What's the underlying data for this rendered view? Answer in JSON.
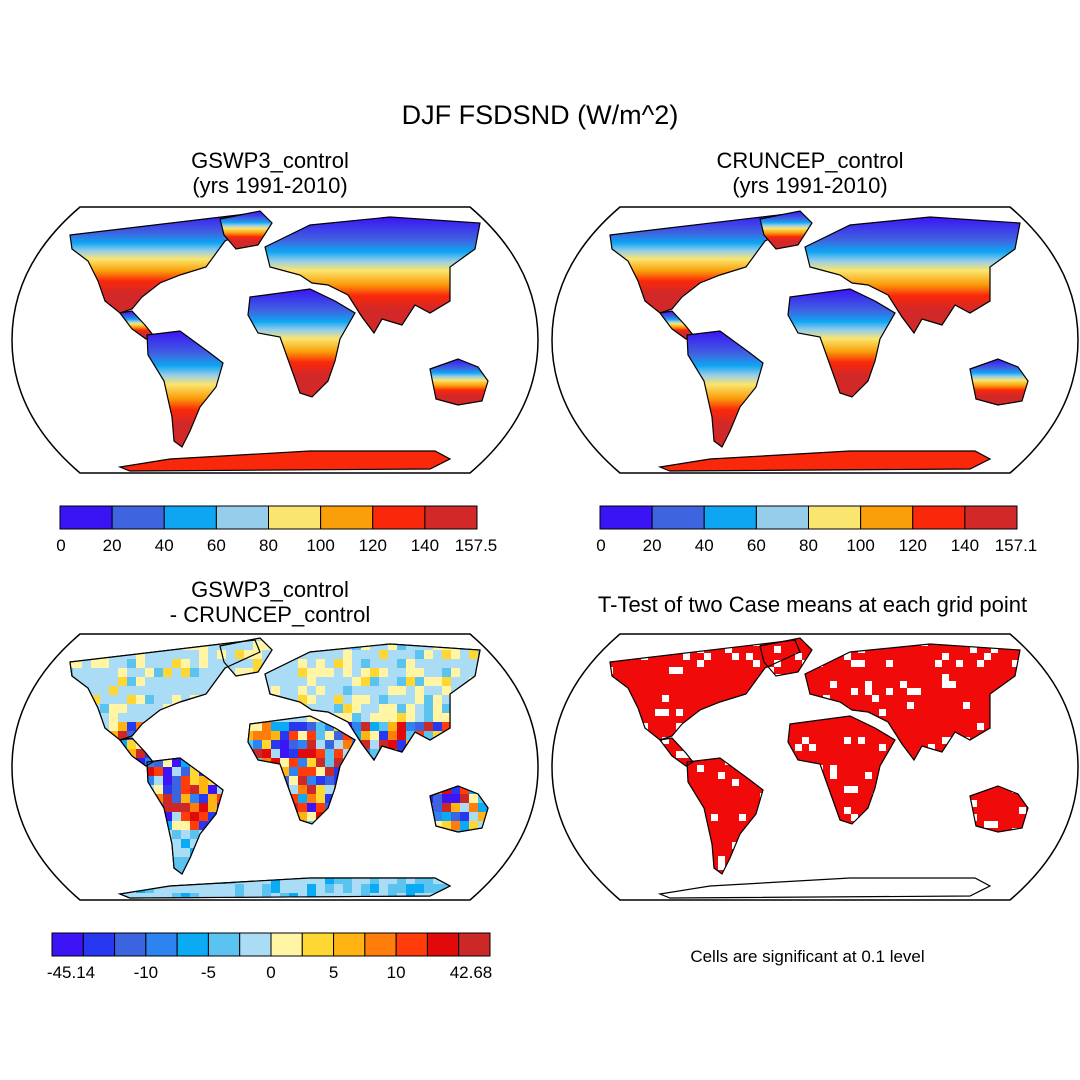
{
  "title": "DJF FSDSND (W/m^2)",
  "panels": [
    {
      "id": "gswp3",
      "title_line1": "GSWP3_control",
      "title_line2": "(yrs 1991-2010)",
      "colorbar": {
        "colors": [
          "#3b14f5",
          "#3f64e0",
          "#0ea6f2",
          "#96cdeb",
          "#fae66e",
          "#fa9e0a",
          "#fa280a",
          "#d22828"
        ],
        "labels": [
          "0",
          "20",
          "40",
          "60",
          "80",
          "100",
          "120",
          "140",
          "157.5"
        ]
      }
    },
    {
      "id": "cruncep",
      "title_line1": "CRUNCEP_control",
      "title_line2": "(yrs 1991-2010)",
      "colorbar": {
        "colors": [
          "#3b14f5",
          "#3f64e0",
          "#0ea6f2",
          "#96cdeb",
          "#fae66e",
          "#fa9e0a",
          "#fa280a",
          "#d22828"
        ],
        "labels": [
          "0",
          "20",
          "40",
          "60",
          "80",
          "100",
          "120",
          "140",
          "157.1"
        ]
      }
    },
    {
      "id": "diff",
      "title_line1": "GSWP3_control",
      "title_line2": "- CRUNCEP_control",
      "colorbar": {
        "colors": [
          "#3c14f5",
          "#2838f0",
          "#3c64e0",
          "#2d84f0",
          "#0aaaf5",
          "#5ac3f0",
          "#aadcf5",
          "#fff5a5",
          "#ffd732",
          "#ffb414",
          "#ff7d0a",
          "#ff3c0a",
          "#e10a0a",
          "#cd2828"
        ],
        "labels": [
          "-45.14",
          "-10",
          "-5",
          "0",
          "5",
          "10",
          "42.68"
        ]
      }
    },
    {
      "id": "ttest",
      "title_line1": "T-Test of two Case means at each grid point",
      "note": "Cells are significant at 0.1 level",
      "significant_color": "#f00a0a"
    }
  ]
}
